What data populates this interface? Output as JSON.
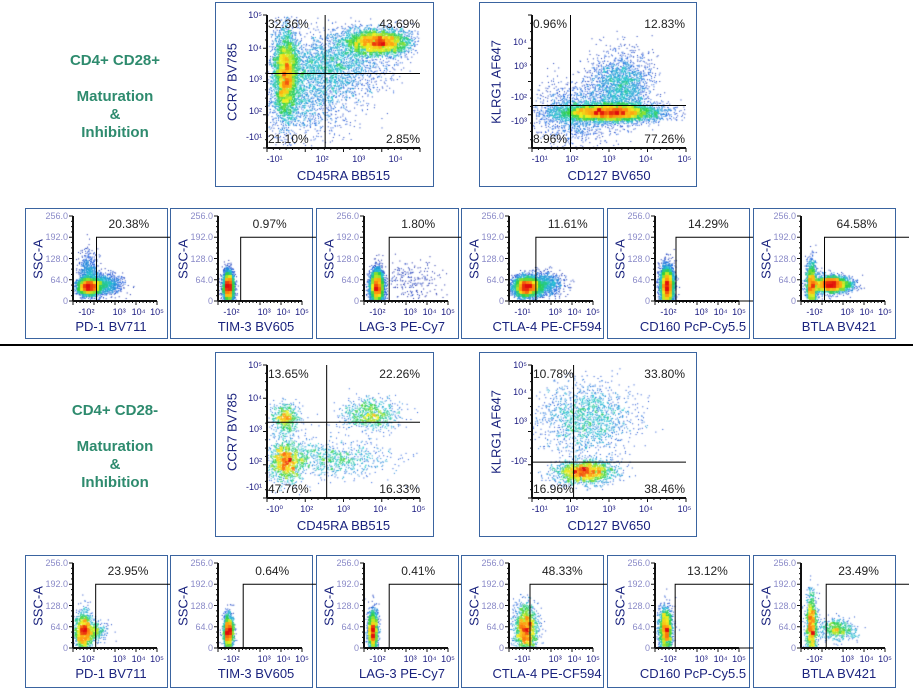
{
  "colors": {
    "section_title": "#2e8b6e",
    "axis_title": "#1a237e",
    "plot_border": "#3a64a0",
    "density_scale": [
      "#0a0a8c",
      "#1f5ee0",
      "#20c0d0",
      "#30d040",
      "#f0f020",
      "#ff9010",
      "#e01010"
    ]
  },
  "sections": [
    {
      "title": "CD4+ CD28+",
      "subtitle_1": "Maturation",
      "subtitle_2": "&",
      "subtitle_3": "Inhibition",
      "quad_plots": [
        {
          "x_label": "CD45RA BB515",
          "y_label": "CCR7 BV785",
          "ul": "32.36%",
          "ur": "43.69%",
          "ll": "21.10%",
          "lr": "2.85%",
          "x_ticks": [
            "-10¹",
            "10²",
            "10³",
            "10⁴"
          ],
          "y_ticks": [
            "-10¹",
            "10²",
            "10³",
            "10⁴",
            "10⁵"
          ]
        },
        {
          "x_label": "CD127 BV650",
          "y_label": "KLRG1 AF647",
          "ul": "0.96%",
          "ur": "12.83%",
          "ll": "8.96%",
          "lr": "77.26%",
          "x_ticks": [
            "-10¹",
            "10²",
            "10³",
            "10⁴",
            "10⁵"
          ],
          "y_ticks": [
            "-10³",
            "-10²",
            "10³",
            "10⁴"
          ]
        }
      ],
      "small_plots": [
        {
          "x_label": "PD-1 BV711",
          "y_label": "SSC-A",
          "gate": "20.38%",
          "x_ticks": [
            "-10²",
            "10³",
            "10⁴",
            "10⁵"
          ],
          "y_ticks": [
            "0",
            "64.0",
            "128.0",
            "192.0",
            "256.0"
          ]
        },
        {
          "x_label": "TIM-3 BV605",
          "y_label": "SSC-A",
          "gate": "0.97%",
          "x_ticks": [
            "-10²",
            "10³",
            "10⁴",
            "10⁵"
          ],
          "y_ticks": [
            "0",
            "64.0",
            "128.0",
            "192.0",
            "256.0"
          ]
        },
        {
          "x_label": "LAG-3 PE-Cy7",
          "y_label": "SSC-A",
          "gate": "1.80%",
          "x_ticks": [
            "-10²",
            "10³",
            "10⁴",
            "10⁵"
          ],
          "y_ticks": [
            "0",
            "64.0",
            "128.0",
            "192.0",
            "256.0"
          ]
        },
        {
          "x_label": "CTLA-4 PE-CF594",
          "y_label": "SSC-A",
          "gate": "11.61%",
          "x_ticks": [
            "-10¹",
            "10³",
            "10⁴",
            "10⁵"
          ],
          "y_ticks": [
            "0",
            "64.0",
            "128.0",
            "192.0",
            "256.0"
          ]
        },
        {
          "x_label": "CD160 PcP-Cy5.5",
          "y_label": "SSC-A",
          "gate": "14.29%",
          "x_ticks": [
            "-10²",
            "10³",
            "10⁴",
            "10⁵"
          ],
          "y_ticks": [
            "0",
            "64.0",
            "128.0",
            "192.0",
            "256.0"
          ]
        },
        {
          "x_label": "BTLA BV421",
          "y_label": "SSC-A",
          "gate": "64.58%",
          "x_ticks": [
            "-10²",
            "10³",
            "10⁴",
            "10⁵"
          ],
          "y_ticks": [
            "0",
            "64.0",
            "128.0",
            "192.0",
            "256.0"
          ]
        }
      ]
    },
    {
      "title": "CD4+ CD28-",
      "subtitle_1": "Maturation",
      "subtitle_2": "&",
      "subtitle_3": "Inhibition",
      "quad_plots": [
        {
          "x_label": "CD45RA BB515",
          "y_label": "CCR7 BV785",
          "ul": "13.65%",
          "ur": "22.26%",
          "ll": "47.76%",
          "lr": "16.33%",
          "x_ticks": [
            "-10⁰",
            "10²",
            "10³",
            "10⁴",
            "10⁵"
          ],
          "y_ticks": [
            "-10¹",
            "10²",
            "10³",
            "10⁴",
            "10⁵"
          ]
        },
        {
          "x_label": "CD127 BV650",
          "y_label": "KLRG1 AF647",
          "ul": "10.78%",
          "ur": "33.80%",
          "ll": "16.96%",
          "lr": "38.46%",
          "x_ticks": [
            "-10¹",
            "10²",
            "10³",
            "10⁴",
            "10⁵"
          ],
          "y_ticks": [
            "-10²",
            "10³",
            "10⁴",
            "10⁵"
          ]
        }
      ],
      "small_plots": [
        {
          "x_label": "PD-1 BV711",
          "y_label": "SSC-A",
          "gate": "23.95%",
          "x_ticks": [
            "-10²",
            "10³",
            "10⁴",
            "10⁵"
          ],
          "y_ticks": [
            "0",
            "64.0",
            "128.0",
            "192.0",
            "256.0"
          ]
        },
        {
          "x_label": "TIM-3 BV605",
          "y_label": "SSC-A",
          "gate": "0.64%",
          "x_ticks": [
            "-10²",
            "10³",
            "10⁴",
            "10⁵"
          ],
          "y_ticks": [
            "0",
            "64.0",
            "128.0",
            "192.0",
            "256.0"
          ]
        },
        {
          "x_label": "LAG-3 PE-Cy7",
          "y_label": "SSC-A",
          "gate": "0.41%",
          "x_ticks": [
            "-10²",
            "10³",
            "10⁴",
            "10⁵"
          ],
          "y_ticks": [
            "0",
            "64.0",
            "128.0",
            "192.0",
            "256.0"
          ]
        },
        {
          "x_label": "CTLA-4 PE-CF594",
          "y_label": "SSC-A",
          "gate": "48.33%",
          "x_ticks": [
            "-10¹",
            "10³",
            "10⁴",
            "10⁵"
          ],
          "y_ticks": [
            "0",
            "64.0",
            "128.0",
            "192.0",
            "256.0"
          ]
        },
        {
          "x_label": "CD160 PcP-Cy5.5",
          "y_label": "SSC-A",
          "gate": "13.12%",
          "x_ticks": [
            "-10²",
            "10³",
            "10⁴",
            "10⁵"
          ],
          "y_ticks": [
            "0",
            "64.0",
            "128.0",
            "192.0",
            "256.0"
          ]
        },
        {
          "x_label": "BTLA BV421",
          "y_label": "SSC-A",
          "gate": "23.49%",
          "x_ticks": [
            "-10²",
            "10³",
            "10⁴",
            "10⁵"
          ],
          "y_ticks": [
            "0",
            "64.0",
            "128.0",
            "192.0",
            "256.0"
          ]
        }
      ]
    }
  ],
  "chart_data": {
    "type": "scatter",
    "description_type": "flow cytometry density plots; values are gate percentages listed per section"
  }
}
